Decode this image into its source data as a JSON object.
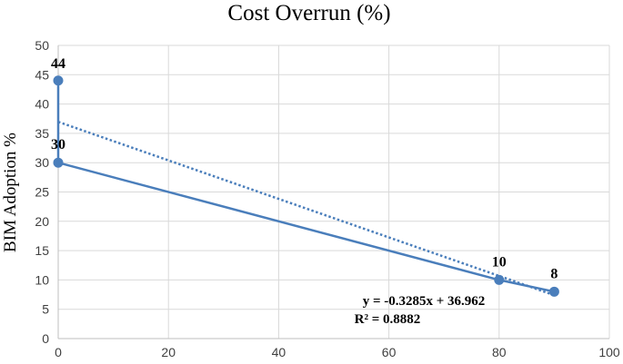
{
  "chart_data": {
    "type": "line",
    "title": "Cost Overrun (%)",
    "xlabel": "",
    "ylabel": "BIM Adoption %",
    "xlim": [
      0,
      100
    ],
    "ylim": [
      0,
      50
    ],
    "x_ticks": [
      0,
      20,
      40,
      60,
      80,
      100
    ],
    "y_ticks": [
      0,
      5,
      10,
      15,
      20,
      25,
      30,
      35,
      40,
      45,
      50
    ],
    "grid": true,
    "series": [
      {
        "points": [
          {
            "x": 0,
            "y": 44,
            "label": "44"
          },
          {
            "x": 0,
            "y": 30,
            "label": "30"
          },
          {
            "x": 80,
            "y": 10,
            "label": "10"
          },
          {
            "x": 90,
            "y": 8,
            "label": "8"
          }
        ],
        "color": "#4a7ebb"
      }
    ],
    "trendline": {
      "type": "linear",
      "slope": -0.3285,
      "intercept": 36.962,
      "x_range": [
        0,
        90
      ],
      "style": "dotted",
      "color": "#4a7ebb",
      "equation": "y = -0.3285x + 36.962",
      "r_squared": "R² = 0.8882"
    }
  }
}
